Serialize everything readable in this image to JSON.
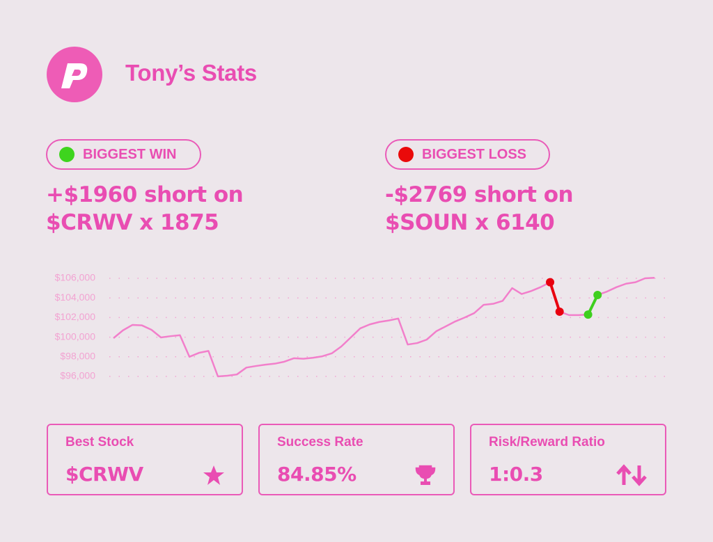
{
  "header": {
    "title": "Tony’s Stats"
  },
  "highlights": [
    {
      "label": "BIGGEST WIN",
      "dot_color": "#3ed41e",
      "lines": [
        "+$1960 short on",
        "$CRWV x 1875"
      ]
    },
    {
      "label": "BIGGEST LOSS",
      "dot_color": "#ea0a0a",
      "lines": [
        "-$2769 short on",
        "$SOUN x 6140"
      ]
    }
  ],
  "chart_data": {
    "type": "line",
    "ylim": [
      96000,
      106000
    ],
    "yticks": [
      {
        "value": 96000,
        "label": "$96,000"
      },
      {
        "value": 98000,
        "label": "$98,000"
      },
      {
        "value": 100000,
        "label": "$100,000"
      },
      {
        "value": 102000,
        "label": "$102,000"
      },
      {
        "value": 104000,
        "label": "$104,000"
      },
      {
        "value": 106000,
        "label": "$106,000"
      }
    ],
    "grid": true,
    "series": [
      {
        "color": "#f27fcb",
        "values": [
          99900,
          100700,
          101250,
          101200,
          100750,
          99970,
          100100,
          100200,
          98000,
          98400,
          98600,
          96000,
          96070,
          96200,
          96900,
          97060,
          97200,
          97300,
          97500,
          97850,
          97800,
          97900,
          98050,
          98350,
          99050,
          99970,
          100900,
          101300,
          101550,
          101700,
          101900,
          99250,
          99400,
          99750,
          100600,
          101100,
          101600,
          102000,
          102450,
          103300,
          103400,
          103700,
          105000,
          104400,
          104700,
          105100,
          105600,
          102600,
          102250,
          102250,
          102300,
          104300,
          104650,
          105100,
          105450,
          105600,
          106000,
          106050
        ]
      },
      {
        "color": "#e8000f",
        "values": [
          null,
          null,
          null,
          null,
          null,
          null,
          null,
          null,
          null,
          null,
          null,
          null,
          null,
          null,
          null,
          null,
          null,
          null,
          null,
          null,
          null,
          null,
          null,
          null,
          null,
          null,
          null,
          null,
          null,
          null,
          null,
          null,
          null,
          null,
          null,
          null,
          null,
          null,
          null,
          null,
          null,
          null,
          null,
          null,
          null,
          null,
          105600,
          102600,
          null,
          null,
          null,
          null,
          null,
          null,
          null,
          null,
          null,
          null
        ]
      },
      {
        "color": "#3ecf1e",
        "values": [
          null,
          null,
          null,
          null,
          null,
          null,
          null,
          null,
          null,
          null,
          null,
          null,
          null,
          null,
          null,
          null,
          null,
          null,
          null,
          null,
          null,
          null,
          null,
          null,
          null,
          null,
          null,
          null,
          null,
          null,
          null,
          null,
          null,
          null,
          null,
          null,
          null,
          null,
          null,
          null,
          null,
          null,
          null,
          null,
          null,
          null,
          null,
          null,
          null,
          null,
          102300,
          104300,
          null,
          null,
          null,
          null,
          null,
          null
        ]
      }
    ]
  },
  "stats": [
    {
      "label": "Best Stock",
      "value": "$CRWV"
    },
    {
      "label": "Success Rate",
      "value": "84.85%"
    },
    {
      "label": "Risk/Reward Ratio",
      "value": "1:0.3"
    }
  ]
}
